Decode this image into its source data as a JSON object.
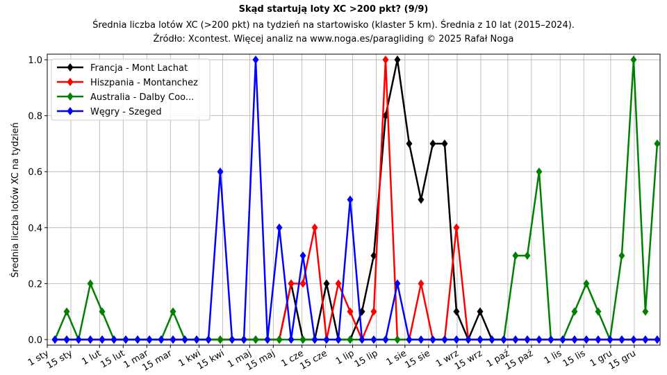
{
  "chart_data": {
    "type": "line",
    "title": "Skąd startują loty XC >200 pkt? (9/9)",
    "subtitle": [
      "Średnia liczba lotów XC (>200 pkt) na tydzień na startowisko (klaster 5 km). Średnia z 10 lat (2015–2024).",
      "Źródło: Xcontest. Więcej analiz na www.noga.es/paragliding © 2025 Rafał Noga"
    ],
    "y_label": "Średnia liczba lotów XC na tydzień",
    "x": [
      1,
      2,
      3,
      4,
      5,
      6,
      7,
      8,
      9,
      10,
      11,
      12,
      13,
      14,
      15,
      16,
      17,
      18,
      19,
      20,
      21,
      22,
      23,
      24,
      25,
      26,
      27,
      28,
      29,
      30,
      31,
      32,
      33,
      34,
      35,
      36,
      37,
      38,
      39,
      40,
      41,
      42,
      43,
      44,
      45,
      46,
      47,
      48,
      49,
      50,
      51,
      52
    ],
    "series": [
      {
        "name": "Francja - Mont Lachat",
        "color": "#000000",
        "values": [
          0,
          0,
          0,
          0,
          0,
          0,
          0,
          0,
          0,
          0,
          0,
          0,
          0,
          0,
          0,
          0,
          0,
          0,
          0,
          0,
          0.2,
          0,
          0,
          0.2,
          0,
          0,
          0.1,
          0.3,
          0.8,
          1.0,
          0.7,
          0.5,
          0.7,
          0.7,
          0.1,
          0,
          0.1,
          0,
          0,
          0,
          0,
          0,
          0,
          0,
          0,
          0,
          0,
          0,
          0,
          0,
          0,
          0
        ]
      },
      {
        "name": "Hiszpania - Montanchez",
        "color": "#ff0000",
        "values": [
          0,
          0,
          0,
          0,
          0,
          0,
          0,
          0,
          0,
          0,
          0,
          0,
          0,
          0,
          0,
          0,
          0,
          0,
          0,
          0,
          0.2,
          0.2,
          0.4,
          0,
          0.2,
          0.1,
          0,
          0.1,
          1.0,
          0,
          0,
          0.2,
          0,
          0,
          0.4,
          0,
          0,
          0,
          0,
          0,
          0,
          0,
          0,
          0,
          0,
          0,
          0,
          0,
          0,
          0,
          0,
          0
        ]
      },
      {
        "name": "Australia - Dalby Coo...",
        "color": "#008000",
        "values": [
          0,
          0.1,
          0,
          0.2,
          0.1,
          0,
          0,
          0,
          0,
          0,
          0.1,
          0,
          0,
          0,
          0,
          0,
          0,
          0,
          0,
          0,
          0,
          0,
          0,
          0,
          0,
          0,
          0,
          0,
          0,
          0,
          0,
          0,
          0,
          0,
          0,
          0,
          0,
          0,
          0,
          0.3,
          0.3,
          0.6,
          0,
          0,
          0.1,
          0.2,
          0.1,
          0,
          0.3,
          1.0,
          0.1,
          0.7
        ]
      },
      {
        "name": "Węgry - Szeged",
        "color": "#0000ff",
        "values": [
          0,
          0,
          0,
          0,
          0,
          0,
          0,
          0,
          0,
          0,
          0,
          0,
          0,
          0,
          0.6,
          0,
          0,
          1.0,
          0,
          0.4,
          0,
          0.3,
          0,
          0,
          0,
          0.5,
          0,
          0,
          0,
          0.2,
          0,
          0,
          0,
          0,
          0,
          0,
          0,
          0,
          0,
          0,
          0,
          0,
          0,
          0,
          0,
          0,
          0,
          0,
          0,
          0,
          0,
          0
        ]
      }
    ],
    "xlim": [
      0.35,
      52.24
    ],
    "xticks": [
      {
        "value": 0.35,
        "label": "1 sty"
      },
      {
        "value": 2.35,
        "label": "15 sty"
      },
      {
        "value": 4.78,
        "label": "1 lut"
      },
      {
        "value": 6.78,
        "label": "15 lut"
      },
      {
        "value": 8.78,
        "label": "1 mar"
      },
      {
        "value": 10.78,
        "label": "15 mar"
      },
      {
        "value": 13.21,
        "label": "1 kwi"
      },
      {
        "value": 15.21,
        "label": "15 kwi"
      },
      {
        "value": 17.49,
        "label": "1 maj"
      },
      {
        "value": 19.49,
        "label": "15 maj"
      },
      {
        "value": 21.92,
        "label": "1 cze"
      },
      {
        "value": 23.92,
        "label": "15 cze"
      },
      {
        "value": 26.21,
        "label": "1 lip"
      },
      {
        "value": 28.21,
        "label": "15 lip"
      },
      {
        "value": 30.64,
        "label": "1 sie"
      },
      {
        "value": 32.64,
        "label": "15 sie"
      },
      {
        "value": 35.06,
        "label": "1 wrz"
      },
      {
        "value": 37.06,
        "label": "15 wrz"
      },
      {
        "value": 39.35,
        "label": "1 paź"
      },
      {
        "value": 41.35,
        "label": "15 paź"
      },
      {
        "value": 43.78,
        "label": "1 lis"
      },
      {
        "value": 45.78,
        "label": "15 lis"
      },
      {
        "value": 48.06,
        "label": "1 gru"
      },
      {
        "value": 50.06,
        "label": "15 gru"
      }
    ],
    "ylim": [
      -0.02,
      1.02
    ],
    "yticks": [
      {
        "value": 0,
        "label": "0.0"
      },
      0.2,
      0.4,
      0.6,
      0.8,
      {
        "value": 1,
        "label": "1.0"
      }
    ],
    "grid": true,
    "legend": "upper left"
  }
}
